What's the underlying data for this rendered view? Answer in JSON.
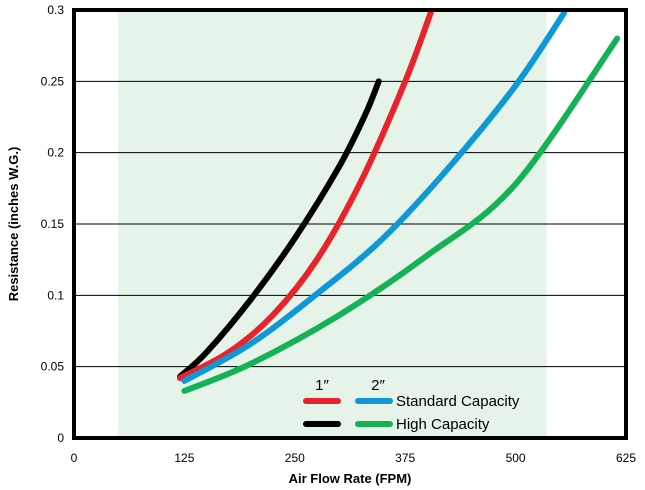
{
  "chart_data": {
    "type": "line",
    "xlabel": "Air Flow Rate (FPM)",
    "ylabel": "Resistance (inches W.G.)",
    "xlim": [
      0,
      625
    ],
    "ylim": [
      0,
      0.3
    ],
    "xticks": [
      0,
      125,
      250,
      375,
      500,
      625
    ],
    "yticks": [
      0,
      0.05,
      0.1,
      0.15,
      0.2,
      0.25,
      0.3
    ],
    "xtick_labels": [
      "0",
      "125",
      "250",
      "375",
      "500",
      "625"
    ],
    "ytick_labels": [
      "0",
      "0.05",
      "0.1",
      "0.15",
      "0.2",
      "0.25",
      "0.3"
    ],
    "grid": "horizontal",
    "shaded_x_range": [
      50,
      535
    ],
    "colors": {
      "shade": "#e6f3e8",
      "red": "#e8232b",
      "black": "#000000",
      "blue": "#0f98d6",
      "green": "#14b257"
    },
    "legend": {
      "placement": "bottom-right",
      "col_headers": [
        "1″",
        "2″"
      ],
      "rows": [
        "Standard Capacity",
        "High Capacity"
      ]
    },
    "series": [
      {
        "color_key": "black",
        "x": [
          120,
          150,
          200,
          250,
          300,
          330,
          345
        ],
        "y": [
          0.043,
          0.06,
          0.097,
          0.14,
          0.19,
          0.227,
          0.25
        ]
      },
      {
        "color_key": "red",
        "x": [
          120,
          175,
          225,
          275,
          325,
          375,
          405
        ],
        "y": [
          0.042,
          0.06,
          0.086,
          0.125,
          0.18,
          0.25,
          0.3
        ]
      },
      {
        "color_key": "blue",
        "x": [
          125,
          200,
          275,
          350,
          425,
          500,
          555
        ],
        "y": [
          0.04,
          0.066,
          0.101,
          0.14,
          0.19,
          0.247,
          0.298
        ]
      },
      {
        "color_key": "green",
        "x": [
          125,
          200,
          300,
          400,
          500,
          615
        ],
        "y": [
          0.033,
          0.052,
          0.086,
          0.128,
          0.178,
          0.28
        ]
      }
    ]
  }
}
